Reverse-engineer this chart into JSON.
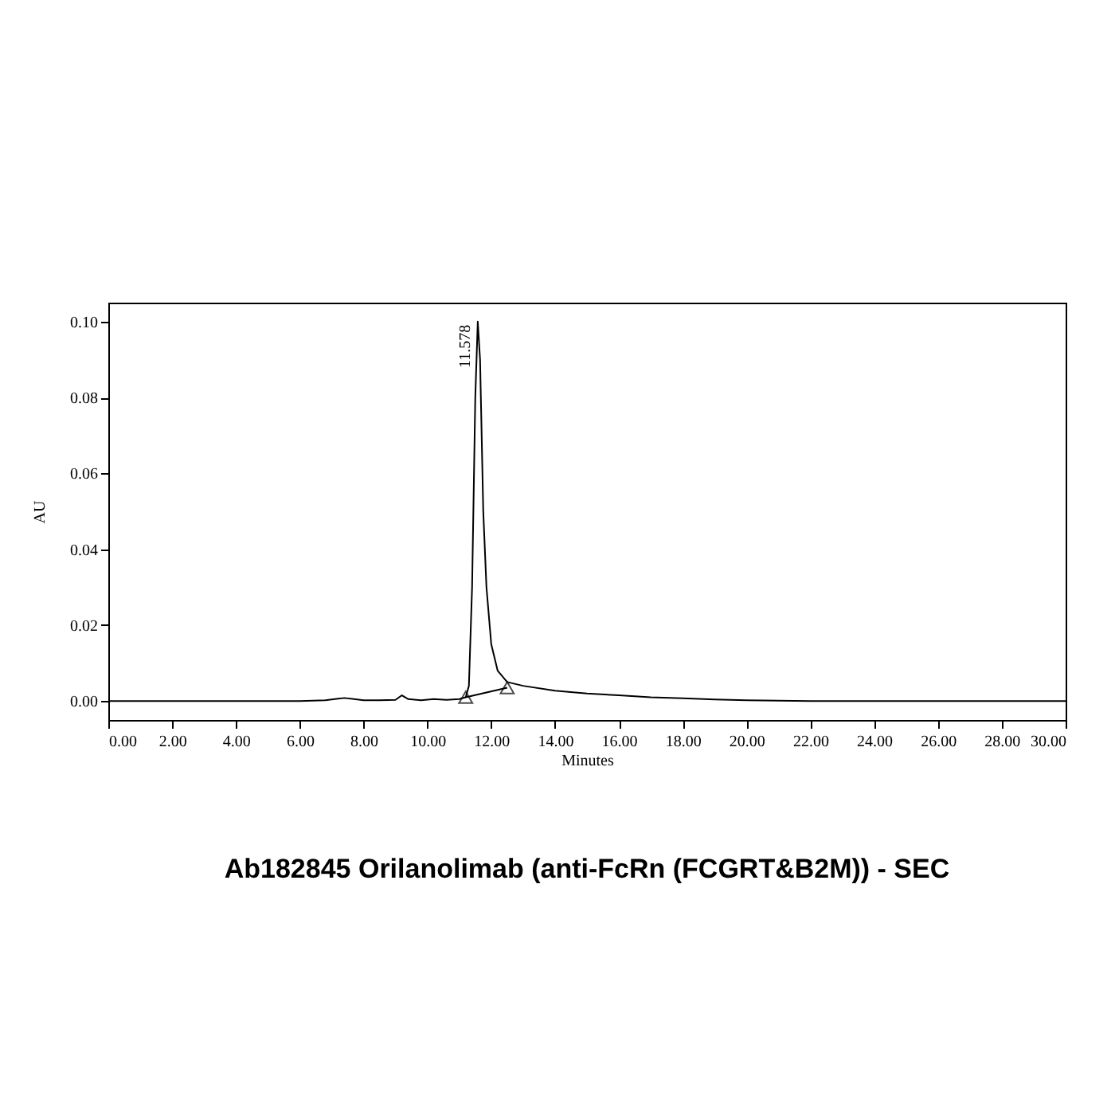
{
  "chart_data": {
    "type": "line",
    "title": "Ab182845 Orilanolimab (anti-FcRn (FCGRT&B2M)) - SEC",
    "xlabel": "Minutes",
    "ylabel": "AU",
    "xlim": [
      0,
      30
    ],
    "ylim": [
      -0.005,
      0.105
    ],
    "xticks": [
      {
        "value": 0,
        "label": "0.00"
      },
      {
        "value": 2,
        "label": "2.00"
      },
      {
        "value": 4,
        "label": "4.00"
      },
      {
        "value": 6,
        "label": "6.00"
      },
      {
        "value": 8,
        "label": "8.00"
      },
      {
        "value": 10,
        "label": "10.00"
      },
      {
        "value": 12,
        "label": "12.00"
      },
      {
        "value": 14,
        "label": "14.00"
      },
      {
        "value": 16,
        "label": "16.00"
      },
      {
        "value": 18,
        "label": "18.00"
      },
      {
        "value": 20,
        "label": "20.00"
      },
      {
        "value": 22,
        "label": "22.00"
      },
      {
        "value": 24,
        "label": "24.00"
      },
      {
        "value": 26,
        "label": "26.00"
      },
      {
        "value": 28,
        "label": "28.00"
      },
      {
        "value": 30,
        "label": "30.00"
      }
    ],
    "yticks": [
      {
        "value": 0,
        "label": "0.00"
      },
      {
        "value": 0.02,
        "label": "0.02"
      },
      {
        "value": 0.04,
        "label": "0.04"
      },
      {
        "value": 0.06,
        "label": "0.06"
      },
      {
        "value": 0.08,
        "label": "0.08"
      },
      {
        "value": 0.1,
        "label": "0.10"
      }
    ],
    "grid": false,
    "series": [
      {
        "color": "#000000",
        "x": [
          0,
          1,
          2,
          4,
          6,
          6.8,
          7.2,
          7.4,
          7.7,
          8,
          8.5,
          9,
          9.2,
          9.4,
          9.8,
          10.2,
          10.6,
          11,
          11.2,
          11.3,
          11.4,
          11.5,
          11.578,
          11.65,
          11.75,
          11.85,
          12,
          12.2,
          12.5,
          13,
          14,
          15,
          16,
          17,
          18,
          19,
          20,
          21,
          22,
          24,
          26,
          28,
          30
        ],
        "values": [
          0,
          0,
          0,
          0,
          0,
          0.0002,
          0.0006,
          0.0008,
          0.0005,
          0.0002,
          0.0002,
          0.0003,
          0.0015,
          0.0005,
          0.0002,
          0.0005,
          0.0003,
          0.0005,
          0.001,
          0.004,
          0.03,
          0.08,
          0.1,
          0.09,
          0.05,
          0.03,
          0.015,
          0.008,
          0.005,
          0.004,
          0.0027,
          0.002,
          0.0015,
          0.001,
          0.0007,
          0.0004,
          0.0002,
          0.0001,
          0,
          0,
          0,
          0,
          0
        ]
      },
      {
        "type": "line",
        "color": "#000000",
        "marker": "triangle",
        "x": [
          11.2,
          12.5
        ],
        "values": [
          0.001,
          0.0035
        ]
      }
    ],
    "annotations": [
      {
        "text": "11.578",
        "x": 11.578,
        "y": 0.1
      }
    ]
  }
}
